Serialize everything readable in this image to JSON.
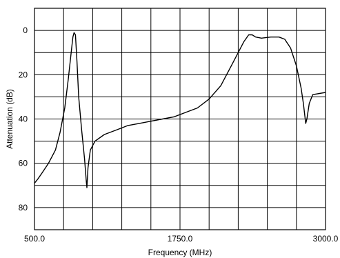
{
  "chart_data": {
    "type": "line",
    "title": "",
    "xlabel": "Frequency (MHz)",
    "ylabel": "Attenuation (dB)",
    "xlim": [
      500,
      3000
    ],
    "ylim": [
      -10,
      90
    ],
    "y_inverted": true,
    "grid": true,
    "x_ticks": [
      {
        "value": 500,
        "label": "500.0"
      },
      {
        "value": 1750,
        "label": "1750.0"
      },
      {
        "value": 3000,
        "label": "3000.0"
      }
    ],
    "y_ticks": [
      {
        "value": 0,
        "label": "0"
      },
      {
        "value": 20,
        "label": "20"
      },
      {
        "value": 40,
        "label": "40"
      },
      {
        "value": 60,
        "label": "60"
      },
      {
        "value": 80,
        "label": "80"
      }
    ],
    "x_grid_divisions": 10,
    "y_grid_divisions": 10,
    "series": [
      {
        "points": [
          [
            500,
            69
          ],
          [
            530,
            67
          ],
          [
            570,
            64
          ],
          [
            620,
            60
          ],
          [
            680,
            54
          ],
          [
            720,
            46
          ],
          [
            760,
            35
          ],
          [
            790,
            22
          ],
          [
            815,
            10
          ],
          [
            830,
            3
          ],
          [
            840,
            1
          ],
          [
            852,
            2
          ],
          [
            865,
            14
          ],
          [
            880,
            30
          ],
          [
            905,
            45
          ],
          [
            930,
            58
          ],
          [
            945,
            68
          ],
          [
            950,
            71
          ],
          [
            960,
            62
          ],
          [
            980,
            54
          ],
          [
            1020,
            50
          ],
          [
            1100,
            47
          ],
          [
            1200,
            45
          ],
          [
            1300,
            43
          ],
          [
            1400,
            42
          ],
          [
            1500,
            41
          ],
          [
            1600,
            40
          ],
          [
            1700,
            39
          ],
          [
            1800,
            37
          ],
          [
            1900,
            35
          ],
          [
            2000,
            31
          ],
          [
            2100,
            25
          ],
          [
            2200,
            15
          ],
          [
            2300,
            5
          ],
          [
            2340,
            2
          ],
          [
            2370,
            2
          ],
          [
            2400,
            3
          ],
          [
            2450,
            3.5
          ],
          [
            2530,
            3
          ],
          [
            2600,
            3
          ],
          [
            2650,
            4
          ],
          [
            2700,
            8
          ],
          [
            2750,
            16
          ],
          [
            2790,
            26
          ],
          [
            2810,
            33
          ],
          [
            2830,
            42
          ],
          [
            2840,
            40
          ],
          [
            2860,
            33
          ],
          [
            2890,
            29
          ],
          [
            3000,
            28
          ]
        ]
      }
    ]
  }
}
